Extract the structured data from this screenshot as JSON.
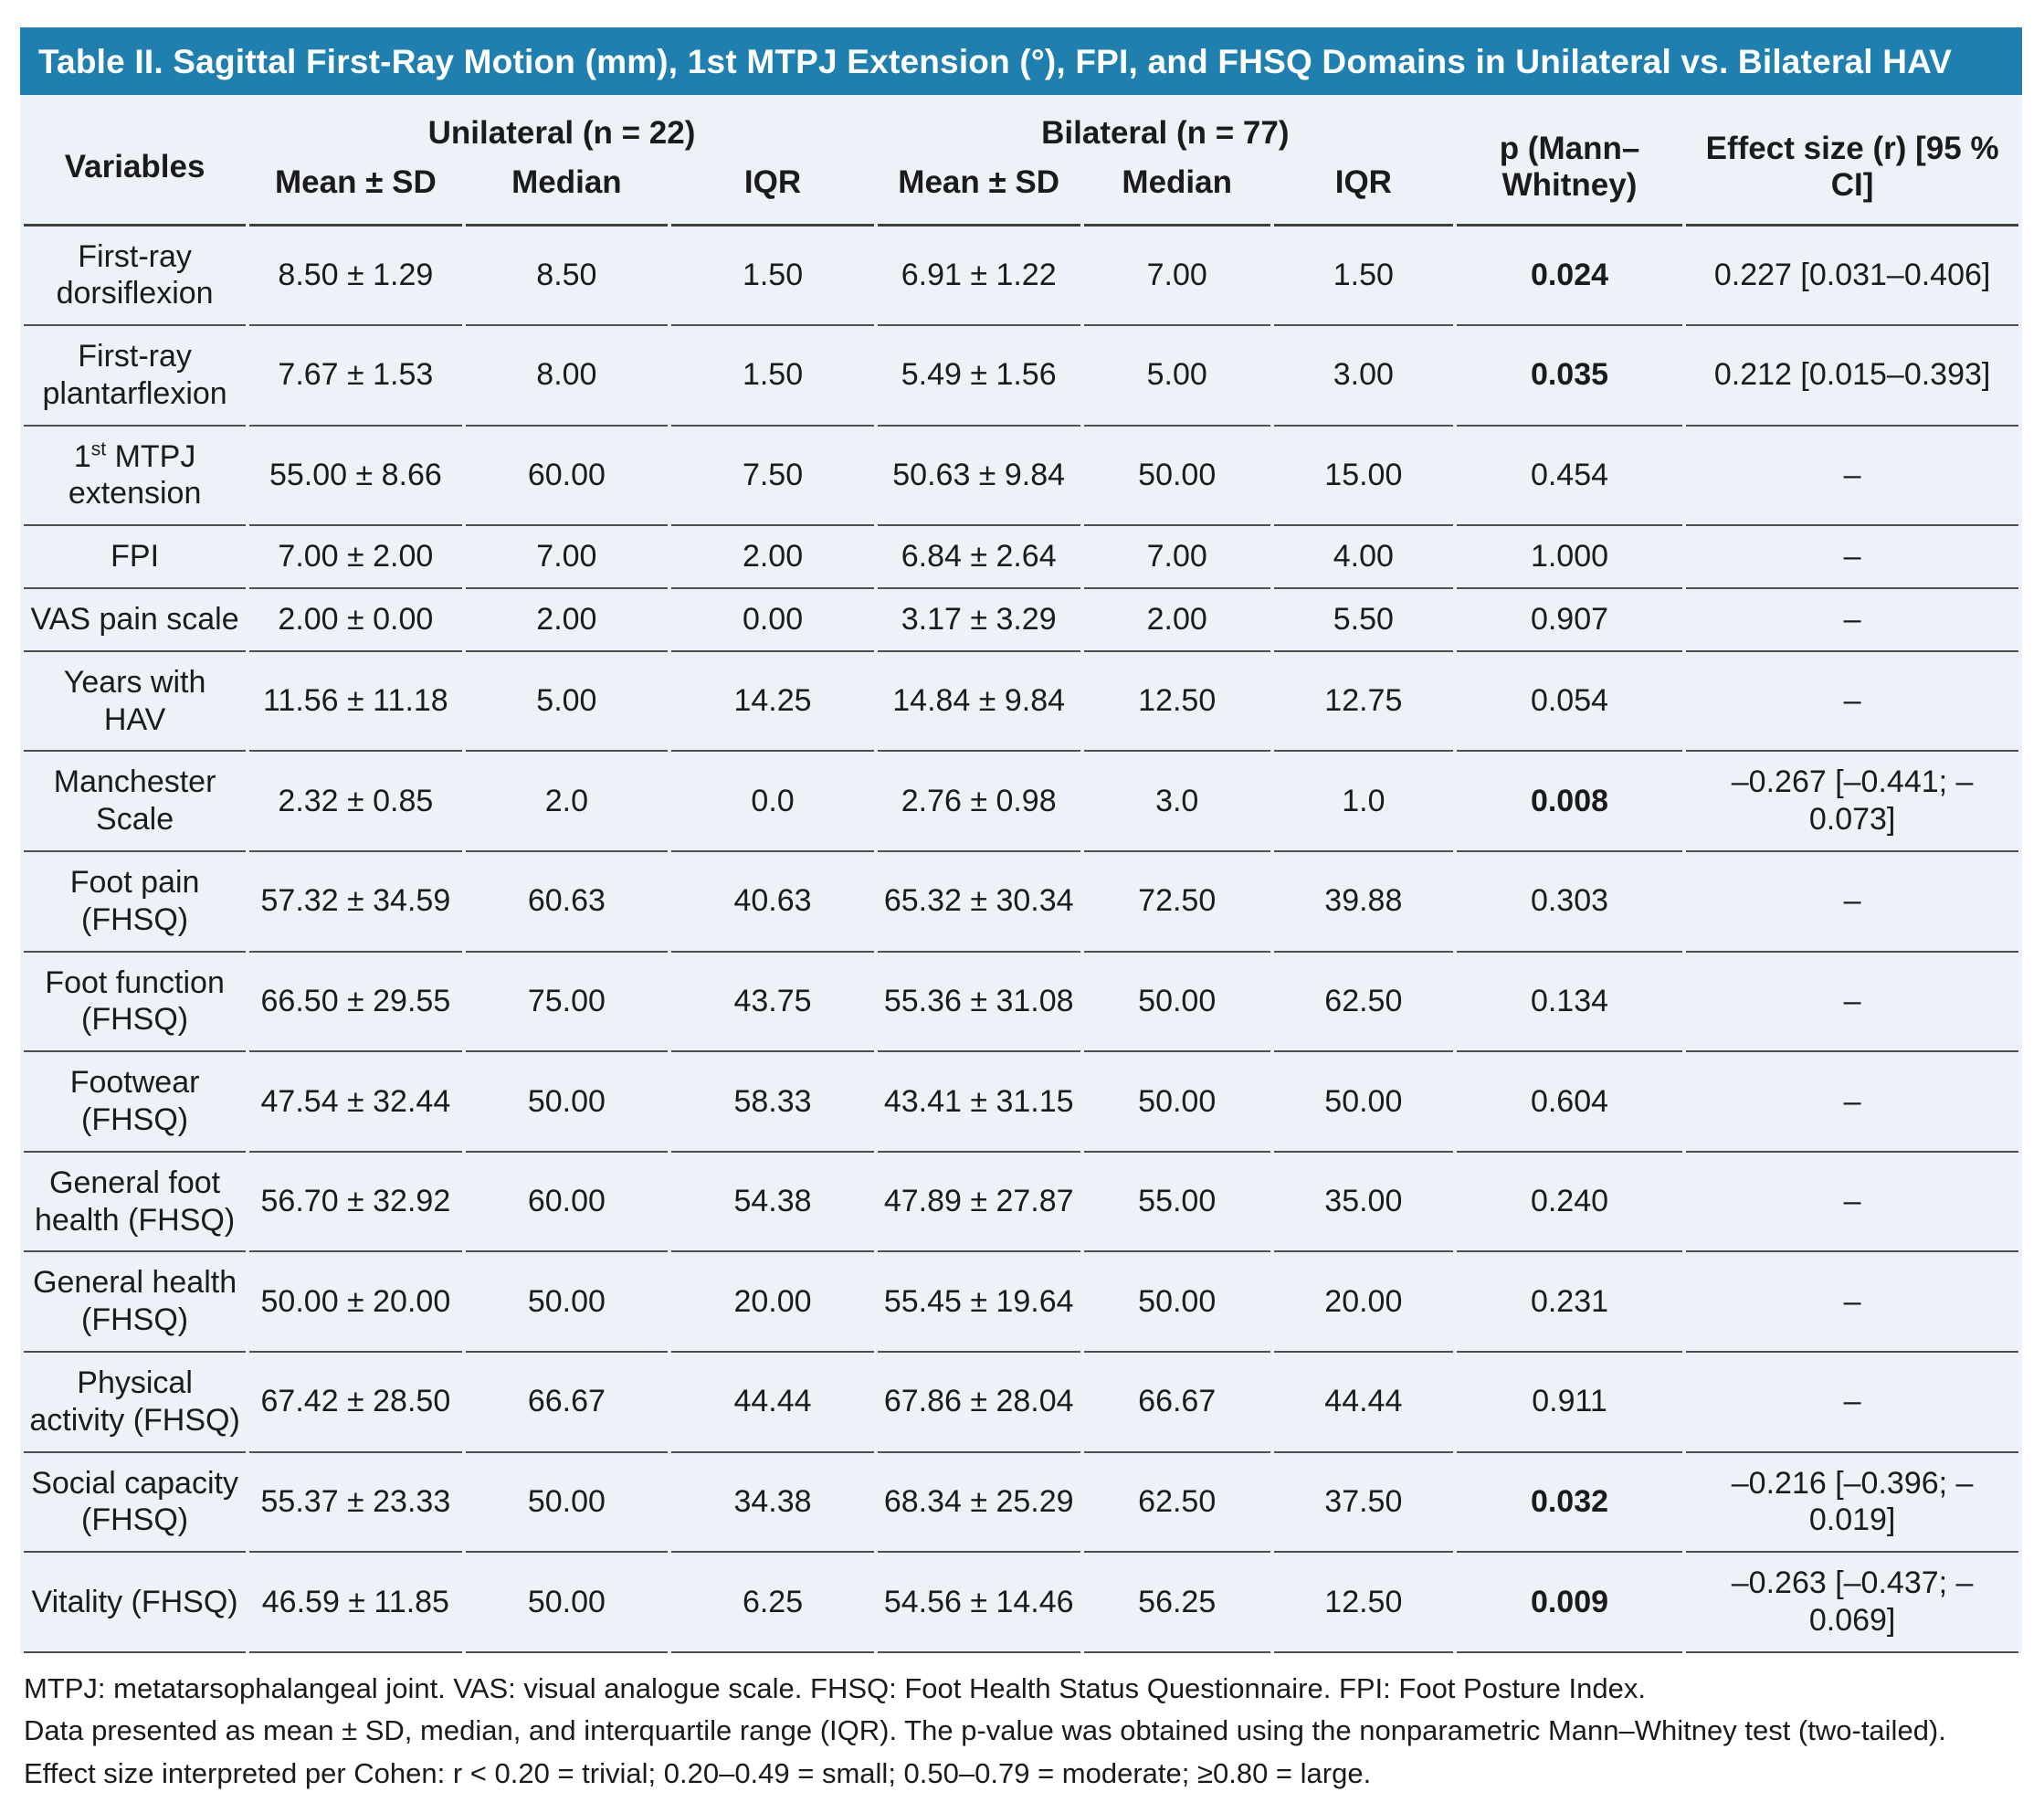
{
  "title": "Table II. Sagittal First-Ray Motion (mm), 1st MTPJ Extension (°), FPI, and FHSQ Domains in Unilateral vs. Bilateral HAV",
  "colors": {
    "title_bar_blue": "#1f7fae",
    "table_background": "#edf1f8",
    "row_border": "#4f4f4f",
    "text": "#1b1b1b"
  },
  "header": {
    "variables": "Variables",
    "group_unilateral": "Unilateral (n = 22)",
    "group_bilateral": "Bilateral (n = 77)",
    "sub_labels": [
      "Mean ± SD",
      "Median",
      "IQR",
      "Mean ± SD",
      "Median",
      "IQR"
    ],
    "p_label": "p (Mann–Whitney)",
    "effect_label": "Effect size (r) [95 % CI]"
  },
  "rows": [
    {
      "label": "First-ray dorsiflexion",
      "uni_mean_sd": "8.50 ± 1.29",
      "uni_median": "8.50",
      "uni_iqr": "1.50",
      "bi_mean_sd": "6.91 ± 1.22",
      "bi_median": "7.00",
      "bi_iqr": "1.50",
      "p": "0.024",
      "p_bold": true,
      "effect": "0.227 [0.031–0.406]"
    },
    {
      "label": "First-ray plantarflexion",
      "uni_mean_sd": "7.67 ± 1.53",
      "uni_median": "8.00",
      "uni_iqr": "1.50",
      "bi_mean_sd": "5.49 ± 1.56",
      "bi_median": "5.00",
      "bi_iqr": "3.00",
      "p": "0.035",
      "p_bold": true,
      "effect": "0.212 [0.015–0.393]"
    },
    {
      "label_parts": [
        {
          "text": "1"
        },
        {
          "text": "st",
          "sup": true
        },
        {
          "text": " MTPJ extension"
        }
      ],
      "label": "1st MTPJ extension",
      "uni_mean_sd": "55.00 ± 8.66",
      "uni_median": "60.00",
      "uni_iqr": "7.50",
      "bi_mean_sd": "50.63 ± 9.84",
      "bi_median": "50.00",
      "bi_iqr": "15.00",
      "p": "0.454",
      "p_bold": false,
      "effect": "–"
    },
    {
      "label": "FPI",
      "uni_mean_sd": "7.00 ± 2.00",
      "uni_median": "7.00",
      "uni_iqr": "2.00",
      "bi_mean_sd": "6.84 ± 2.64",
      "bi_median": "7.00",
      "bi_iqr": "4.00",
      "p": "1.000",
      "p_bold": false,
      "effect": "–"
    },
    {
      "label": "VAS pain scale",
      "uni_mean_sd": "2.00 ± 0.00",
      "uni_median": "2.00",
      "uni_iqr": "0.00",
      "bi_mean_sd": "3.17 ± 3.29",
      "bi_median": "2.00",
      "bi_iqr": "5.50",
      "p": "0.907",
      "p_bold": false,
      "effect": "–"
    },
    {
      "label": "Years with HAV",
      "uni_mean_sd": "11.56 ± 11.18",
      "uni_median": "5.00",
      "uni_iqr": "14.25",
      "bi_mean_sd": "14.84 ± 9.84",
      "bi_median": "12.50",
      "bi_iqr": "12.75",
      "p": "0.054",
      "p_bold": false,
      "effect": "–"
    },
    {
      "label": "Manchester Scale",
      "uni_mean_sd": "2.32 ± 0.85",
      "uni_median": "2.0",
      "uni_iqr": "0.0",
      "bi_mean_sd": "2.76 ± 0.98",
      "bi_median": "3.0",
      "bi_iqr": "1.0",
      "p": "0.008",
      "p_bold": true,
      "effect": "–0.267 [–0.441; –0.073]"
    },
    {
      "label": "Foot pain (FHSQ)",
      "uni_mean_sd": "57.32 ± 34.59",
      "uni_median": "60.63",
      "uni_iqr": "40.63",
      "bi_mean_sd": "65.32 ± 30.34",
      "bi_median": "72.50",
      "bi_iqr": "39.88",
      "p": "0.303",
      "p_bold": false,
      "effect": "–"
    },
    {
      "label": "Foot function (FHSQ)",
      "uni_mean_sd": "66.50 ± 29.55",
      "uni_median": "75.00",
      "uni_iqr": "43.75",
      "bi_mean_sd": "55.36 ± 31.08",
      "bi_median": "50.00",
      "bi_iqr": "62.50",
      "p": "0.134",
      "p_bold": false,
      "effect": "–"
    },
    {
      "label": "Footwear (FHSQ)",
      "uni_mean_sd": "47.54 ± 32.44",
      "uni_median": "50.00",
      "uni_iqr": "58.33",
      "bi_mean_sd": "43.41 ± 31.15",
      "bi_median": "50.00",
      "bi_iqr": "50.00",
      "p": "0.604",
      "p_bold": false,
      "effect": "–"
    },
    {
      "label": "General foot health (FHSQ)",
      "uni_mean_sd": "56.70 ± 32.92",
      "uni_median": "60.00",
      "uni_iqr": "54.38",
      "bi_mean_sd": "47.89 ± 27.87",
      "bi_median": "55.00",
      "bi_iqr": "35.00",
      "p": "0.240",
      "p_bold": false,
      "effect": "–"
    },
    {
      "label": "General health (FHSQ)",
      "uni_mean_sd": "50.00 ± 20.00",
      "uni_median": "50.00",
      "uni_iqr": "20.00",
      "bi_mean_sd": "55.45 ± 19.64",
      "bi_median": "50.00",
      "bi_iqr": "20.00",
      "p": "0.231",
      "p_bold": false,
      "effect": "–"
    },
    {
      "label": "Physical activity (FHSQ)",
      "uni_mean_sd": "67.42 ± 28.50",
      "uni_median": "66.67",
      "uni_iqr": "44.44",
      "bi_mean_sd": "67.86 ± 28.04",
      "bi_median": "66.67",
      "bi_iqr": "44.44",
      "p": "0.911",
      "p_bold": false,
      "effect": "–"
    },
    {
      "label": "Social capacity (FHSQ)",
      "uni_mean_sd": "55.37 ± 23.33",
      "uni_median": "50.00",
      "uni_iqr": "34.38",
      "bi_mean_sd": "68.34 ± 25.29",
      "bi_median": "62.50",
      "bi_iqr": "37.50",
      "p": "0.032",
      "p_bold": true,
      "effect": "–0.216 [–0.396; –0.019]"
    },
    {
      "label": "Vitality (FHSQ)",
      "uni_mean_sd": "46.59 ± 11.85",
      "uni_median": "50.00",
      "uni_iqr": "6.25",
      "bi_mean_sd": "54.56 ± 14.46",
      "bi_median": "56.25",
      "bi_iqr": "12.50",
      "p": "0.009",
      "p_bold": true,
      "effect": "–0.263 [–0.437; –0.069]"
    }
  ],
  "footnotes": {
    "line1": "MTPJ: metatarsophalangeal joint. VAS: visual analogue scale. FHSQ: Foot Health Status Questionnaire. FPI: Foot Posture Index.",
    "line2": "Data presented as mean ± SD, median, and interquartile range (IQR). The p-value was obtained using the nonparametric Mann–Whitney test (two-tailed). Effect size interpreted per Cohen: r < 0.20 = trivial; 0.20–0.49 = small; 0.50–0.79 = moderate; ≥0.80 = large."
  }
}
